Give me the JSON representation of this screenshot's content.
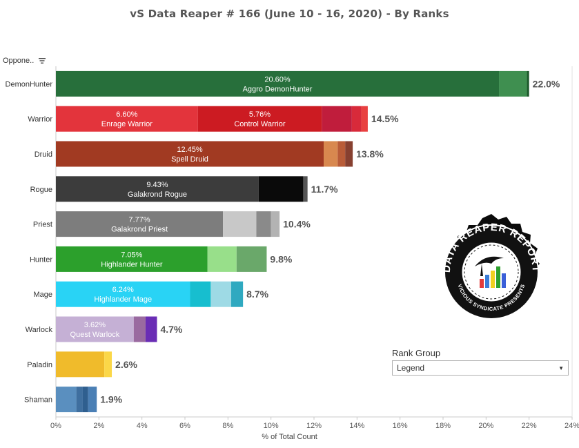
{
  "title": "vS Data Reaper #  166 (June 10 - 16, 2020) - By Ranks",
  "row_header": "Oppone..",
  "rank_group": {
    "label": "Rank Group",
    "value": "Legend"
  },
  "logo": {
    "text_top": "DATA REAPER REPORT",
    "text_bottom": "VICIOUS SYNDICATE PRESENTS"
  },
  "chart_data": {
    "type": "bar",
    "orientation": "horizontal",
    "stacked": true,
    "xlabel": "% of Total Count",
    "xlim": [
      0,
      24
    ],
    "xticks": [
      "0%",
      "2%",
      "4%",
      "6%",
      "8%",
      "10%",
      "12%",
      "14%",
      "16%",
      "18%",
      "20%",
      "22%",
      "24%"
    ],
    "grid": false,
    "categories": [
      {
        "name": "DemonHunter",
        "total": 22.0,
        "total_label": "22.0%",
        "segments": [
          {
            "value": 20.6,
            "color": "#276f3b",
            "pct": "20.60%",
            "label": "Aggro DemonHunter"
          },
          {
            "value": 1.3,
            "color": "#3f8f50"
          },
          {
            "value": 0.1,
            "color": "#1c5a2b"
          }
        ]
      },
      {
        "name": "Warrior",
        "total": 14.5,
        "total_label": "14.5%",
        "segments": [
          {
            "value": 6.6,
            "color": "#e3343c",
            "pct": "6.60%",
            "label": "Enrage Warrior"
          },
          {
            "value": 5.76,
            "color": "#cc1b22",
            "pct": "5.76%",
            "label": "Control Warrior"
          },
          {
            "value": 1.4,
            "color": "#c01d3c"
          },
          {
            "value": 0.44,
            "color": "#d82a3a"
          },
          {
            "value": 0.3,
            "color": "#e94040"
          }
        ]
      },
      {
        "name": "Druid",
        "total": 13.8,
        "total_label": "13.8%",
        "segments": [
          {
            "value": 12.45,
            "color": "#a13a22"
          },
          {
            "value": 0.65,
            "color": "#d8884f"
          },
          {
            "value": 0.35,
            "color": "#b95c38"
          },
          {
            "value": 0.35,
            "color": "#874030"
          }
        ],
        "labels": [
          {
            "pct": "12.45%",
            "label": "Spell Druid"
          }
        ]
      },
      {
        "name": "Rogue",
        "total": 11.7,
        "total_label": "11.7%",
        "segments": [
          {
            "value": 9.43,
            "color": "#3c3c3c",
            "pct": "9.43%",
            "label": "Galakrond Rogue"
          },
          {
            "value": 2.07,
            "color": "#0a0a0a"
          },
          {
            "value": 0.2,
            "color": "#555555"
          }
        ]
      },
      {
        "name": "Priest",
        "total": 10.4,
        "total_label": "10.4%",
        "segments": [
          {
            "value": 7.77,
            "color": "#7d7d7d",
            "pct": "7.77%",
            "label": "Galakrond Priest"
          },
          {
            "value": 1.55,
            "color": "#c8c8c8"
          },
          {
            "value": 0.68,
            "color": "#8a8a8a"
          },
          {
            "value": 0.4,
            "color": "#b3b3b3"
          }
        ]
      },
      {
        "name": "Hunter",
        "total": 9.8,
        "total_label": "9.8%",
        "segments": [
          {
            "value": 7.05,
            "color": "#2ca02c",
            "pct": "7.05%",
            "label": "Highlander Hunter"
          },
          {
            "value": 1.35,
            "color": "#98df8a"
          },
          {
            "value": 1.4,
            "color": "#6aa86a"
          }
        ]
      },
      {
        "name": "Mage",
        "total": 8.7,
        "total_label": "8.7%",
        "segments": [
          {
            "value": 6.24,
            "color": "#29d3f5",
            "pct": "6.24%",
            "label": "Highlander Mage"
          },
          {
            "value": 0.96,
            "color": "#17becf"
          },
          {
            "value": 0.95,
            "color": "#9edae5"
          },
          {
            "value": 0.55,
            "color": "#2fa9c0"
          }
        ]
      },
      {
        "name": "Warlock",
        "total": 4.7,
        "total_label": "4.7%",
        "segments": [
          {
            "value": 3.62,
            "color": "#c5b0d5",
            "pct": "3.62%",
            "label": "Quest Warlock"
          },
          {
            "value": 0.55,
            "color": "#9a6aa0"
          },
          {
            "value": 0.53,
            "color": "#6a2db5"
          }
        ]
      },
      {
        "name": "Paladin",
        "total": 2.6,
        "total_label": "2.6%",
        "segments": [
          {
            "value": 2.25,
            "color": "#f0bb2b"
          },
          {
            "value": 0.35,
            "color": "#fbd748"
          }
        ]
      },
      {
        "name": "Shaman",
        "total": 1.9,
        "total_label": "1.9%",
        "segments": [
          {
            "value": 0.95,
            "color": "#5a8fbf"
          },
          {
            "value": 0.3,
            "color": "#3f6f9f"
          },
          {
            "value": 0.25,
            "color": "#2f5f8f"
          },
          {
            "value": 0.4,
            "color": "#4a7fb5"
          }
        ]
      }
    ]
  }
}
